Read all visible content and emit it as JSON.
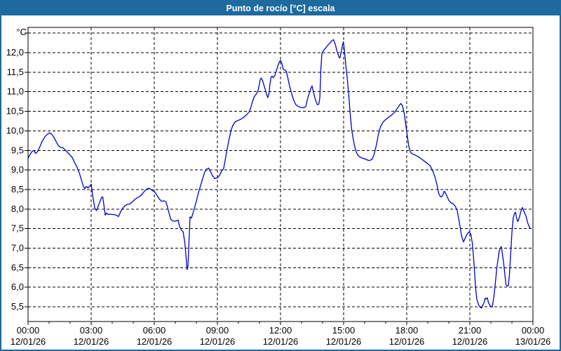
{
  "window": {
    "title": "Punto de rocío [°C] escala",
    "title_bar_color": "#1d6a9f",
    "border_color": "#1d6a9f",
    "background": "#ffffff"
  },
  "chart_data": {
    "type": "line",
    "title": "Punto de rocío [°C] escala",
    "unit_label": "°C",
    "line_color": "#0000cc",
    "grid_color": "#000000",
    "text_color": "#000000",
    "grid": "dashed",
    "legend_position": "none",
    "ylim": [
      5.1,
      12.6
    ],
    "xlim_hours": [
      0,
      24
    ],
    "yticks": [
      {
        "value": 12.5,
        "label": ""
      },
      {
        "value": 12.0,
        "label": "12,0"
      },
      {
        "value": 11.5,
        "label": "11,5"
      },
      {
        "value": 11.0,
        "label": "11,0"
      },
      {
        "value": 10.5,
        "label": "10,5"
      },
      {
        "value": 10.0,
        "label": "10,0"
      },
      {
        "value": 9.5,
        "label": "9,5"
      },
      {
        "value": 9.0,
        "label": "9,0"
      },
      {
        "value": 8.5,
        "label": "8,5"
      },
      {
        "value": 8.0,
        "label": "8,0"
      },
      {
        "value": 7.5,
        "label": "7,5"
      },
      {
        "value": 7.0,
        "label": "7,0"
      },
      {
        "value": 6.5,
        "label": "6,5"
      },
      {
        "value": 6.0,
        "label": "6,0"
      },
      {
        "value": 5.5,
        "label": "5,5"
      }
    ],
    "xticks": [
      {
        "hour": 0,
        "time": "00:00",
        "date": "12/01/26"
      },
      {
        "hour": 3,
        "time": "03:00",
        "date": "12/01/26"
      },
      {
        "hour": 6,
        "time": "06:00",
        "date": "12/01/26"
      },
      {
        "hour": 9,
        "time": "09:00",
        "date": "12/01/26"
      },
      {
        "hour": 12,
        "time": "12:00",
        "date": "12/01/26"
      },
      {
        "hour": 15,
        "time": "15:00",
        "date": "12/01/26"
      },
      {
        "hour": 18,
        "time": "18:00",
        "date": "12/01/26"
      },
      {
        "hour": 21,
        "time": "21:00",
        "date": "12/01/26"
      },
      {
        "hour": 24,
        "time": "00:00",
        "date": "13/01/26"
      }
    ],
    "x_minor_step_hours": 1,
    "series": [
      {
        "name": "Punto de rocío",
        "points": [
          [
            0.0,
            9.3
          ],
          [
            0.1,
            9.4
          ],
          [
            0.2,
            9.48
          ],
          [
            0.28,
            9.5
          ],
          [
            0.36,
            9.42
          ],
          [
            0.45,
            9.47
          ],
          [
            0.55,
            9.58
          ],
          [
            0.67,
            9.73
          ],
          [
            0.8,
            9.85
          ],
          [
            0.93,
            9.92
          ],
          [
            1.03,
            9.95
          ],
          [
            1.13,
            9.91
          ],
          [
            1.23,
            9.83
          ],
          [
            1.33,
            9.73
          ],
          [
            1.43,
            9.63
          ],
          [
            1.53,
            9.58
          ],
          [
            1.65,
            9.57
          ],
          [
            1.75,
            9.52
          ],
          [
            1.87,
            9.45
          ],
          [
            2.0,
            9.38
          ],
          [
            2.1,
            9.32
          ],
          [
            2.22,
            9.18
          ],
          [
            2.33,
            9.07
          ],
          [
            2.45,
            8.9
          ],
          [
            2.55,
            8.72
          ],
          [
            2.63,
            8.58
          ],
          [
            2.7,
            8.52
          ],
          [
            2.77,
            8.58
          ],
          [
            2.85,
            8.54
          ],
          [
            2.93,
            8.58
          ],
          [
            3.0,
            8.64
          ],
          [
            3.08,
            8.32
          ],
          [
            3.17,
            8.03
          ],
          [
            3.25,
            7.96
          ],
          [
            3.33,
            8.07
          ],
          [
            3.42,
            8.2
          ],
          [
            3.5,
            8.3
          ],
          [
            3.55,
            8.31
          ],
          [
            3.61,
            8.08
          ],
          [
            3.67,
            7.84
          ],
          [
            3.73,
            7.9
          ],
          [
            3.8,
            7.86
          ],
          [
            3.9,
            7.87
          ],
          [
            4.0,
            7.86
          ],
          [
            4.1,
            7.86
          ],
          [
            4.2,
            7.84
          ],
          [
            4.3,
            7.81
          ],
          [
            4.4,
            7.93
          ],
          [
            4.5,
            8.02
          ],
          [
            4.6,
            8.08
          ],
          [
            4.72,
            8.12
          ],
          [
            4.83,
            8.13
          ],
          [
            4.95,
            8.18
          ],
          [
            5.08,
            8.25
          ],
          [
            5.2,
            8.29
          ],
          [
            5.33,
            8.33
          ],
          [
            5.45,
            8.4
          ],
          [
            5.55,
            8.47
          ],
          [
            5.67,
            8.52
          ],
          [
            5.75,
            8.53
          ],
          [
            5.85,
            8.5
          ],
          [
            5.95,
            8.46
          ],
          [
            6.05,
            8.42
          ],
          [
            6.15,
            8.33
          ],
          [
            6.25,
            8.25
          ],
          [
            6.35,
            8.2
          ],
          [
            6.45,
            8.21
          ],
          [
            6.55,
            8.19
          ],
          [
            6.63,
            8.05
          ],
          [
            6.7,
            7.9
          ],
          [
            6.78,
            7.74
          ],
          [
            6.87,
            7.7
          ],
          [
            6.97,
            7.69
          ],
          [
            7.07,
            7.7
          ],
          [
            7.13,
            7.72
          ],
          [
            7.2,
            7.56
          ],
          [
            7.28,
            7.47
          ],
          [
            7.37,
            7.42
          ],
          [
            7.45,
            7.15
          ],
          [
            7.52,
            6.72
          ],
          [
            7.56,
            6.45
          ],
          [
            7.6,
            6.52
          ],
          [
            7.65,
            7.15
          ],
          [
            7.7,
            7.8
          ],
          [
            7.77,
            7.77
          ],
          [
            7.83,
            7.88
          ],
          [
            7.92,
            8.05
          ],
          [
            8.0,
            8.2
          ],
          [
            8.1,
            8.42
          ],
          [
            8.2,
            8.6
          ],
          [
            8.3,
            8.78
          ],
          [
            8.4,
            8.95
          ],
          [
            8.5,
            9.02
          ],
          [
            8.58,
            9.05
          ],
          [
            8.67,
            8.96
          ],
          [
            8.77,
            8.85
          ],
          [
            8.88,
            8.78
          ],
          [
            9.0,
            8.8
          ],
          [
            9.1,
            8.86
          ],
          [
            9.2,
            8.97
          ],
          [
            9.3,
            9.04
          ],
          [
            9.38,
            9.28
          ],
          [
            9.47,
            9.55
          ],
          [
            9.57,
            9.82
          ],
          [
            9.65,
            10.02
          ],
          [
            9.75,
            10.16
          ],
          [
            9.85,
            10.23
          ],
          [
            9.95,
            10.26
          ],
          [
            10.05,
            10.28
          ],
          [
            10.15,
            10.31
          ],
          [
            10.28,
            10.36
          ],
          [
            10.4,
            10.42
          ],
          [
            10.5,
            10.48
          ],
          [
            10.58,
            10.58
          ],
          [
            10.67,
            10.75
          ],
          [
            10.75,
            10.87
          ],
          [
            10.83,
            10.93
          ],
          [
            10.92,
            11.0
          ],
          [
            10.98,
            11.15
          ],
          [
            11.03,
            11.3
          ],
          [
            11.08,
            11.35
          ],
          [
            11.15,
            11.28
          ],
          [
            11.25,
            11.1
          ],
          [
            11.33,
            10.95
          ],
          [
            11.4,
            10.85
          ],
          [
            11.45,
            10.95
          ],
          [
            11.5,
            11.2
          ],
          [
            11.55,
            11.37
          ],
          [
            11.6,
            11.4
          ],
          [
            11.65,
            11.36
          ],
          [
            11.72,
            11.4
          ],
          [
            11.8,
            11.53
          ],
          [
            11.88,
            11.67
          ],
          [
            11.95,
            11.77
          ],
          [
            12.0,
            11.8
          ],
          [
            12.07,
            11.72
          ],
          [
            12.13,
            11.57
          ],
          [
            12.2,
            11.56
          ],
          [
            12.28,
            11.52
          ],
          [
            12.35,
            11.35
          ],
          [
            12.43,
            11.15
          ],
          [
            12.53,
            10.95
          ],
          [
            12.63,
            10.78
          ],
          [
            12.73,
            10.67
          ],
          [
            12.85,
            10.62
          ],
          [
            12.97,
            10.6
          ],
          [
            13.1,
            10.59
          ],
          [
            13.2,
            10.62
          ],
          [
            13.3,
            10.85
          ],
          [
            13.42,
            11.05
          ],
          [
            13.5,
            11.15
          ],
          [
            13.58,
            10.95
          ],
          [
            13.67,
            10.78
          ],
          [
            13.75,
            10.67
          ],
          [
            13.82,
            10.68
          ],
          [
            13.87,
            10.85
          ],
          [
            13.92,
            11.6
          ],
          [
            13.97,
            11.98
          ],
          [
            14.05,
            12.06
          ],
          [
            14.15,
            12.12
          ],
          [
            14.25,
            12.19
          ],
          [
            14.35,
            12.25
          ],
          [
            14.45,
            12.31
          ],
          [
            14.52,
            12.33
          ],
          [
            14.6,
            12.22
          ],
          [
            14.68,
            12.05
          ],
          [
            14.77,
            11.9
          ],
          [
            14.82,
            11.86
          ],
          [
            14.88,
            12.0
          ],
          [
            14.95,
            12.2
          ],
          [
            14.99,
            12.28
          ],
          [
            15.04,
            12.05
          ],
          [
            15.1,
            11.7
          ],
          [
            15.17,
            11.35
          ],
          [
            15.24,
            10.95
          ],
          [
            15.31,
            10.45
          ],
          [
            15.38,
            10.05
          ],
          [
            15.46,
            9.78
          ],
          [
            15.54,
            9.57
          ],
          [
            15.62,
            9.43
          ],
          [
            15.72,
            9.35
          ],
          [
            15.85,
            9.31
          ],
          [
            15.97,
            9.29
          ],
          [
            16.1,
            9.26
          ],
          [
            16.22,
            9.24
          ],
          [
            16.35,
            9.27
          ],
          [
            16.45,
            9.4
          ],
          [
            16.55,
            9.62
          ],
          [
            16.65,
            9.9
          ],
          [
            16.75,
            10.1
          ],
          [
            16.87,
            10.22
          ],
          [
            17.0,
            10.29
          ],
          [
            17.13,
            10.34
          ],
          [
            17.27,
            10.4
          ],
          [
            17.4,
            10.46
          ],
          [
            17.52,
            10.55
          ],
          [
            17.63,
            10.64
          ],
          [
            17.72,
            10.7
          ],
          [
            17.8,
            10.64
          ],
          [
            17.88,
            10.45
          ],
          [
            17.95,
            10.18
          ],
          [
            18.02,
            9.9
          ],
          [
            18.1,
            9.6
          ],
          [
            18.18,
            9.45
          ],
          [
            18.27,
            9.41
          ],
          [
            18.4,
            9.38
          ],
          [
            18.55,
            9.34
          ],
          [
            18.7,
            9.28
          ],
          [
            18.85,
            9.22
          ],
          [
            19.0,
            9.16
          ],
          [
            19.12,
            9.1
          ],
          [
            19.25,
            8.96
          ],
          [
            19.35,
            8.8
          ],
          [
            19.45,
            8.6
          ],
          [
            19.52,
            8.4
          ],
          [
            19.58,
            8.33
          ],
          [
            19.65,
            8.31
          ],
          [
            19.72,
            8.36
          ],
          [
            19.78,
            8.46
          ],
          [
            19.85,
            8.4
          ],
          [
            19.93,
            8.31
          ],
          [
            20.0,
            8.22
          ],
          [
            20.1,
            8.16
          ],
          [
            20.22,
            8.13
          ],
          [
            20.32,
            8.06
          ],
          [
            20.4,
            7.96
          ],
          [
            20.47,
            7.75
          ],
          [
            20.55,
            7.5
          ],
          [
            20.62,
            7.28
          ],
          [
            20.7,
            7.16
          ],
          [
            20.78,
            7.26
          ],
          [
            20.88,
            7.37
          ],
          [
            20.97,
            7.42
          ],
          [
            21.05,
            7.35
          ],
          [
            21.12,
            7.12
          ],
          [
            21.2,
            6.6
          ],
          [
            21.27,
            6.0
          ],
          [
            21.33,
            5.7
          ],
          [
            21.42,
            5.55
          ],
          [
            21.5,
            5.48
          ],
          [
            21.56,
            5.47
          ],
          [
            21.62,
            5.55
          ],
          [
            21.67,
            5.6
          ],
          [
            21.73,
            5.72
          ],
          [
            21.78,
            5.7
          ],
          [
            21.83,
            5.73
          ],
          [
            21.89,
            5.6
          ],
          [
            21.94,
            5.55
          ],
          [
            22.0,
            5.51
          ],
          [
            22.06,
            5.49
          ],
          [
            22.12,
            5.68
          ],
          [
            22.17,
            5.88
          ],
          [
            22.23,
            6.2
          ],
          [
            22.28,
            6.49
          ],
          [
            22.34,
            6.7
          ],
          [
            22.39,
            6.91
          ],
          [
            22.45,
            7.0
          ],
          [
            22.5,
            7.04
          ],
          [
            22.56,
            6.8
          ],
          [
            22.61,
            6.61
          ],
          [
            22.67,
            6.3
          ],
          [
            22.72,
            6.06
          ],
          [
            22.78,
            6.03
          ],
          [
            22.83,
            6.04
          ],
          [
            22.88,
            6.3
          ],
          [
            22.94,
            6.85
          ],
          [
            23.0,
            7.4
          ],
          [
            23.06,
            7.77
          ],
          [
            23.12,
            7.88
          ],
          [
            23.17,
            7.92
          ],
          [
            23.23,
            7.75
          ],
          [
            23.28,
            7.68
          ],
          [
            23.35,
            7.78
          ],
          [
            23.42,
            7.93
          ],
          [
            23.5,
            8.04
          ],
          [
            23.58,
            7.93
          ],
          [
            23.67,
            7.82
          ],
          [
            23.75,
            7.65
          ],
          [
            23.82,
            7.55
          ],
          [
            23.88,
            7.5
          ]
        ]
      }
    ]
  }
}
